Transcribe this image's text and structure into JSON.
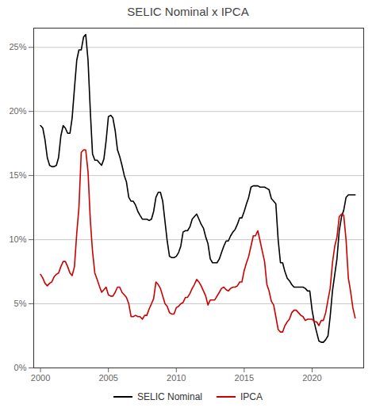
{
  "chart_data": {
    "type": "line",
    "title": "SELIC Nominal x IPCA",
    "x": [
      2000.0,
      2000.17,
      2000.33,
      2000.5,
      2000.67,
      2000.83,
      2001.0,
      2001.17,
      2001.33,
      2001.5,
      2001.67,
      2001.83,
      2002.0,
      2002.17,
      2002.33,
      2002.5,
      2002.67,
      2002.83,
      2003.0,
      2003.17,
      2003.33,
      2003.5,
      2003.67,
      2003.83,
      2004.0,
      2004.17,
      2004.33,
      2004.5,
      2004.67,
      2004.83,
      2005.0,
      2005.17,
      2005.33,
      2005.5,
      2005.67,
      2005.83,
      2006.0,
      2006.17,
      2006.33,
      2006.5,
      2006.67,
      2006.83,
      2007.0,
      2007.17,
      2007.33,
      2007.5,
      2007.67,
      2007.83,
      2008.0,
      2008.17,
      2008.33,
      2008.5,
      2008.67,
      2008.83,
      2009.0,
      2009.17,
      2009.33,
      2009.5,
      2009.67,
      2009.83,
      2010.0,
      2010.17,
      2010.33,
      2010.5,
      2010.67,
      2010.83,
      2011.0,
      2011.17,
      2011.33,
      2011.5,
      2011.67,
      2011.83,
      2012.0,
      2012.17,
      2012.33,
      2012.5,
      2012.67,
      2012.83,
      2013.0,
      2013.17,
      2013.33,
      2013.5,
      2013.67,
      2013.83,
      2014.0,
      2014.17,
      2014.33,
      2014.5,
      2014.67,
      2014.83,
      2015.0,
      2015.17,
      2015.33,
      2015.5,
      2015.67,
      2015.83,
      2016.0,
      2016.17,
      2016.33,
      2016.5,
      2016.67,
      2016.83,
      2017.0,
      2017.17,
      2017.33,
      2017.5,
      2017.67,
      2017.83,
      2018.0,
      2018.17,
      2018.33,
      2018.5,
      2018.67,
      2018.83,
      2019.0,
      2019.17,
      2019.33,
      2019.5,
      2019.67,
      2019.83,
      2020.0,
      2020.17,
      2020.33,
      2020.5,
      2020.67,
      2020.83,
      2021.0,
      2021.17,
      2021.33,
      2021.5,
      2021.67,
      2021.83,
      2022.0,
      2022.17,
      2022.33,
      2022.5,
      2022.67,
      2022.83,
      2023.0,
      2023.17
    ],
    "series": [
      {
        "name": "SELIC Nominal",
        "color": "#000000",
        "values": [
          0.189,
          0.187,
          0.178,
          0.164,
          0.158,
          0.157,
          0.157,
          0.158,
          0.164,
          0.181,
          0.189,
          0.187,
          0.183,
          0.183,
          0.195,
          0.218,
          0.24,
          0.248,
          0.248,
          0.258,
          0.26,
          0.24,
          0.2,
          0.167,
          0.162,
          0.162,
          0.16,
          0.158,
          0.163,
          0.177,
          0.196,
          0.197,
          0.195,
          0.185,
          0.17,
          0.165,
          0.158,
          0.15,
          0.145,
          0.133,
          0.13,
          0.13,
          0.127,
          0.122,
          0.119,
          0.116,
          0.116,
          0.116,
          0.115,
          0.116,
          0.122,
          0.133,
          0.137,
          0.137,
          0.13,
          0.114,
          0.099,
          0.087,
          0.086,
          0.086,
          0.087,
          0.09,
          0.095,
          0.106,
          0.107,
          0.107,
          0.11,
          0.116,
          0.118,
          0.12,
          0.116,
          0.112,
          0.109,
          0.102,
          0.097,
          0.085,
          0.082,
          0.082,
          0.082,
          0.085,
          0.09,
          0.095,
          0.099,
          0.099,
          0.103,
          0.106,
          0.108,
          0.112,
          0.117,
          0.117,
          0.122,
          0.128,
          0.133,
          0.141,
          0.142,
          0.142,
          0.142,
          0.141,
          0.141,
          0.141,
          0.14,
          0.139,
          0.132,
          0.13,
          0.128,
          0.1,
          0.082,
          0.082,
          0.075,
          0.07,
          0.068,
          0.065,
          0.063,
          0.063,
          0.063,
          0.063,
          0.063,
          0.062,
          0.06,
          0.06,
          0.045,
          0.035,
          0.028,
          0.021,
          0.02,
          0.02,
          0.022,
          0.025,
          0.04,
          0.06,
          0.073,
          0.085,
          0.107,
          0.118,
          0.123,
          0.133,
          0.135,
          0.135,
          0.135,
          0.135
        ]
      },
      {
        "name": "IPCA",
        "color": "#cc0000",
        "values": [
          0.073,
          0.07,
          0.066,
          0.064,
          0.066,
          0.067,
          0.071,
          0.073,
          0.074,
          0.079,
          0.083,
          0.083,
          0.079,
          0.074,
          0.072,
          0.079,
          0.105,
          0.125,
          0.168,
          0.17,
          0.17,
          0.153,
          0.115,
          0.091,
          0.074,
          0.069,
          0.064,
          0.059,
          0.061,
          0.063,
          0.057,
          0.056,
          0.056,
          0.059,
          0.063,
          0.063,
          0.059,
          0.057,
          0.055,
          0.05,
          0.04,
          0.04,
          0.041,
          0.04,
          0.04,
          0.038,
          0.041,
          0.041,
          0.046,
          0.05,
          0.054,
          0.067,
          0.065,
          0.062,
          0.056,
          0.05,
          0.048,
          0.043,
          0.042,
          0.042,
          0.047,
          0.048,
          0.05,
          0.051,
          0.055,
          0.055,
          0.058,
          0.062,
          0.065,
          0.069,
          0.067,
          0.064,
          0.06,
          0.056,
          0.049,
          0.053,
          0.053,
          0.053,
          0.056,
          0.059,
          0.062,
          0.063,
          0.061,
          0.06,
          0.062,
          0.063,
          0.063,
          0.064,
          0.067,
          0.067,
          0.076,
          0.082,
          0.087,
          0.095,
          0.103,
          0.103,
          0.107,
          0.099,
          0.091,
          0.083,
          0.065,
          0.06,
          0.052,
          0.049,
          0.04,
          0.03,
          0.028,
          0.028,
          0.033,
          0.036,
          0.038,
          0.043,
          0.045,
          0.045,
          0.043,
          0.041,
          0.04,
          0.037,
          0.038,
          0.038,
          0.038,
          0.036,
          0.036,
          0.033,
          0.037,
          0.037,
          0.043,
          0.053,
          0.062,
          0.082,
          0.095,
          0.102,
          0.118,
          0.12,
          0.119,
          0.1,
          0.07,
          0.06,
          0.047,
          0.039
        ]
      }
    ],
    "xlim": [
      1999.5,
      2023.8
    ],
    "xticks": [
      2000,
      2005,
      2010,
      2015,
      2020
    ],
    "ylim": [
      0,
      0.265
    ],
    "yticks": [
      {
        "value": 0.0,
        "label": "0%"
      },
      {
        "value": 0.05,
        "label": "5%"
      },
      {
        "value": 0.1,
        "label": "10%"
      },
      {
        "value": 0.15,
        "label": "15%"
      },
      {
        "value": 0.2,
        "label": "20%"
      },
      {
        "value": 0.25,
        "label": "25%"
      }
    ],
    "grid": true,
    "legend": "bottom"
  }
}
